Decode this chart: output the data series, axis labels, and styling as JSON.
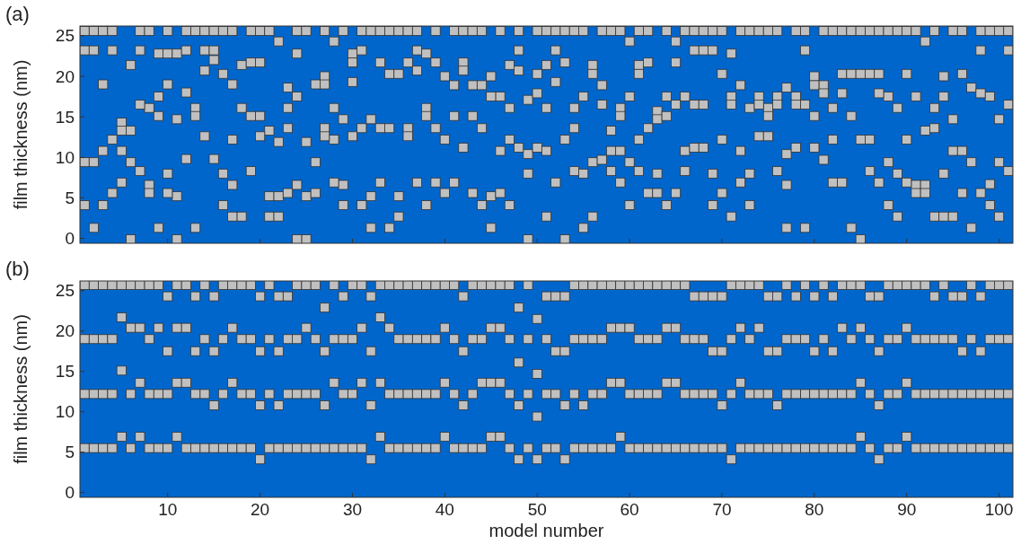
{
  "chart_data": [
    {
      "type": "scatter",
      "title": "(a)",
      "ylabel": "film thickness (nm)",
      "xlim": [
        0.5,
        101.5
      ],
      "xticks": [
        10,
        20,
        30,
        40,
        50,
        60,
        70,
        80,
        90,
        100
      ],
      "ylim": [
        -0.6,
        26.2
      ],
      "yticks": [
        0,
        5,
        10,
        15,
        20,
        25
      ],
      "tick_labels": "y",
      "marker": "square",
      "x": [
        1,
        2,
        3,
        4,
        5,
        6,
        7,
        8,
        9,
        10,
        11,
        12,
        13,
        14,
        15,
        16,
        17,
        18,
        19,
        20,
        21,
        22,
        23,
        24,
        25,
        26,
        27,
        28,
        29,
        30,
        31,
        32,
        33,
        34,
        35,
        36,
        37,
        38,
        39,
        40,
        41,
        42,
        43,
        44,
        45,
        46,
        47,
        48,
        49,
        50,
        51,
        52,
        53,
        54,
        55,
        56,
        57,
        58,
        59,
        60,
        61,
        62,
        63,
        64,
        65,
        66,
        67,
        68,
        69,
        70,
        71,
        72,
        73,
        74,
        75,
        76,
        77,
        78,
        79,
        80,
        81,
        82,
        83,
        84,
        85,
        86,
        87,
        88,
        89,
        90,
        91,
        92,
        93,
        94,
        95,
        96,
        97,
        98,
        99,
        100,
        101
      ],
      "series": [
        {
          "color": "#c0c0c0",
          "values": [
            25.6,
            25.6,
            25.6,
            25.6,
            null,
            null,
            25.6,
            25.6,
            null,
            25.6,
            null,
            25.6,
            25.6,
            25.6,
            25.6,
            25.6,
            25.6,
            null,
            25.6,
            25.6,
            25.6,
            null,
            null,
            25.6,
            25.6,
            null,
            25.6,
            null,
            25.6,
            null,
            25.6,
            25.6,
            25.6,
            25.6,
            25.6,
            25.6,
            25.6,
            null,
            25.6,
            null,
            25.6,
            25.6,
            25.6,
            25.6,
            null,
            25.6,
            null,
            25.6,
            null,
            25.6,
            25.6,
            25.6,
            25.6,
            25.6,
            25.6,
            null,
            25.6,
            25.6,
            25.6,
            null,
            25.6,
            25.6,
            null,
            25.6,
            null,
            25.6,
            25.6,
            25.6,
            25.6,
            25.6,
            null,
            25.6,
            25.6,
            25.6,
            25.6,
            25.6,
            null,
            25.6,
            25.6,
            null,
            25.6,
            25.6,
            25.6,
            25.6,
            25.6,
            25.6,
            25.6,
            25.6,
            25.6,
            25.6,
            25.6,
            null,
            25.6,
            null,
            25.6,
            25.6,
            null,
            25.6,
            25.6,
            25.6,
            25.6
          ]
        },
        {
          "color": "#c0c0c0",
          "values": [
            23.2,
            23.2,
            19.0,
            23.2,
            14.3,
            21.4,
            23.2,
            16.1,
            22.8,
            22.8,
            22.8,
            23.2,
            16.1,
            23.2,
            23.2,
            20.3,
            19.0,
            21.4,
            21.7,
            21.7,
            13.3,
            24.3,
            18.6,
            22.8,
            11.9,
            19.0,
            20.0,
            24.3,
            14.7,
            22.8,
            23.2,
            14.7,
            21.7,
            20.3,
            20.3,
            21.7,
            23.2,
            22.8,
            21.7,
            20.0,
            18.9,
            21.7,
            18.9,
            18.9,
            20.0,
            17.5,
            21.4,
            23.2,
            17.1,
            20.3,
            21.4,
            23.2,
            21.7,
            16.1,
            17.5,
            21.4,
            18.9,
            13.3,
            16.1,
            24.3,
            21.4,
            21.7,
            15.7,
            17.5,
            24.3,
            17.5,
            23.2,
            23.2,
            23.2,
            20.3,
            22.8,
            18.9,
            16.1,
            17.5,
            16.1,
            17.5,
            18.6,
            17.5,
            23.2,
            20.0,
            18.9,
            16.1,
            20.3,
            20.3,
            20.3,
            20.3,
            20.3,
            17.5,
            16.1,
            20.3,
            17.5,
            24.3,
            16.1,
            20.0,
            14.7,
            20.3,
            18.6,
            23.2,
            17.5,
            14.7,
            23.2
          ]
        },
        {
          "color": "#c0c0c0",
          "values": [
            9.4,
            9.4,
            10.8,
            12.2,
            13.3,
            13.3,
            16.5,
            6.6,
            17.5,
            19.0,
            14.7,
            18.0,
            15.1,
            20.7,
            22.0,
            8.0,
            12.2,
            16.1,
            15.1,
            15.1,
            5.2,
            11.9,
            16.1,
            17.5,
            5.2,
            9.4,
            19.0,
            16.1,
            6.6,
            21.7,
            13.6,
            5.2,
            13.6,
            13.6,
            5.2,
            13.6,
            20.7,
            16.1,
            13.6,
            12.2,
            15.1,
            20.7,
            15.1,
            13.6,
            17.5,
            10.8,
            16.1,
            20.7,
            10.4,
            17.9,
            16.1,
            19.3,
            12.2,
            13.6,
            8.0,
            20.3,
            16.5,
            10.8,
            15.1,
            17.5,
            20.3,
            13.6,
            14.7,
            15.1,
            21.7,
            10.8,
            16.5,
            16.5,
            8.0,
            12.2,
            17.5,
            10.8,
            8.0,
            16.5,
            15.1,
            16.5,
            10.4,
            16.5,
            16.5,
            18.9,
            17.9,
            12.2,
            17.9,
            15.1,
            12.2,
            12.2,
            17.9,
            9.4,
            8.0,
            12.2,
            6.6,
            13.3,
            13.6,
            17.5,
            10.8,
            10.8,
            9.4,
            17.9,
            6.7,
            9.4,
            16.5
          ]
        },
        {
          "color": "#c0c0c0",
          "values": [
            4.1,
            1.3,
            4.1,
            5.6,
            10.8,
            9.4,
            8.3,
            5.6,
            15.1,
            8.0,
            5.2,
            9.8,
            1.3,
            12.6,
            9.8,
            4.1,
            6.6,
            2.7,
            8.3,
            12.6,
            2.7,
            5.2,
            13.6,
            6.6,
            -0.1,
            5.6,
            13.6,
            12.2,
            4.1,
            19.3,
            4.1,
            1.3,
            6.9,
            1.3,
            2.7,
            12.6,
            6.9,
            15.1,
            6.9,
            5.6,
            6.9,
            11.2,
            5.6,
            4.1,
            5.2,
            5.6,
            12.2,
            11.2,
            8.0,
            11.2,
            10.8,
            6.9,
            -0.1,
            8.3,
            1.3,
            9.4,
            9.7,
            8.3,
            10.8,
            9.4,
            12.2,
            5.6,
            8.0,
            4.1,
            16.5,
            8.3,
            11.2,
            11.2,
            4.1,
            5.6,
            16.5,
            6.9,
            4.1,
            12.6,
            12.6,
            8.3,
            6.6,
            11.2,
            1.3,
            15.1,
            9.7,
            6.9,
            6.9,
            1.3,
            -0.1,
            8.3,
            6.9,
            4.1,
            2.7,
            6.9,
            5.6,
            6.6,
            2.7,
            8.0,
            2.7,
            5.6,
            1.3,
            5.6,
            4.1,
            2.7,
            8.3
          ]
        },
        {
          "color": "#c0c0c0",
          "x": [
            5,
            6,
            9,
            10,
            11,
            17,
            22,
            23,
            24,
            27,
            28,
            30,
            38,
            45,
            47,
            49,
            51,
            56,
            59,
            60,
            61,
            63,
            65,
            71,
            77,
            80,
            92,
            94
          ],
          "values": [
            6.9,
            -0.1,
            1.3,
            5.6,
            -0.1,
            2.7,
            2.7,
            5.6,
            -0.1,
            12.6,
            6.9,
            12.6,
            4.1,
            1.3,
            4.1,
            -0.1,
            2.7,
            2.7,
            6.9,
            4.1,
            8.3,
            5.6,
            5.6,
            2.7,
            1.3,
            11.2,
            5.6,
            2.7
          ]
        }
      ]
    },
    {
      "type": "scatter",
      "title": "(b)",
      "xlabel": "model number",
      "ylabel": "film thickness (nm)",
      "xlim": [
        0.5,
        101.5
      ],
      "xticks": [
        10,
        20,
        30,
        40,
        50,
        60,
        70,
        80,
        90,
        100
      ],
      "ylim": [
        -0.6,
        26.2
      ],
      "yticks": [
        0,
        5,
        10,
        15,
        20,
        25
      ],
      "marker": "square",
      "x": [
        1,
        2,
        3,
        4,
        5,
        6,
        7,
        8,
        9,
        10,
        11,
        12,
        13,
        14,
        15,
        16,
        17,
        18,
        19,
        20,
        21,
        22,
        23,
        24,
        25,
        26,
        27,
        28,
        29,
        30,
        31,
        32,
        33,
        34,
        35,
        36,
        37,
        38,
        39,
        40,
        41,
        42,
        43,
        44,
        45,
        46,
        47,
        48,
        49,
        50,
        51,
        52,
        53,
        54,
        55,
        56,
        57,
        58,
        59,
        60,
        61,
        62,
        63,
        64,
        65,
        66,
        67,
        68,
        69,
        70,
        71,
        72,
        73,
        74,
        75,
        76,
        77,
        78,
        79,
        80,
        81,
        82,
        83,
        84,
        85,
        86,
        87,
        88,
        89,
        90,
        91,
        92,
        93,
        94,
        95,
        96,
        97,
        98,
        99,
        100,
        101
      ],
      "series": [
        {
          "color": "#c0c0c0",
          "values": [
            25.7,
            25.7,
            25.7,
            25.7,
            25.7,
            25.7,
            25.7,
            25.7,
            25.7,
            null,
            25.7,
            25.7,
            null,
            25.7,
            null,
            25.7,
            25.7,
            25.7,
            25.7,
            null,
            25.7,
            null,
            null,
            25.7,
            25.7,
            25.7,
            null,
            25.7,
            null,
            25.7,
            25.7,
            null,
            25.7,
            25.7,
            25.7,
            25.7,
            25.7,
            25.7,
            25.7,
            25.7,
            25.7,
            null,
            25.7,
            25.7,
            25.7,
            25.7,
            25.7,
            null,
            25.7,
            null,
            null,
            null,
            null,
            25.7,
            25.7,
            25.7,
            25.7,
            25.7,
            25.7,
            25.7,
            25.7,
            25.7,
            25.7,
            25.7,
            25.7,
            25.7,
            null,
            null,
            null,
            null,
            25.7,
            25.7,
            25.7,
            25.7,
            null,
            null,
            25.7,
            null,
            25.7,
            null,
            25.7,
            null,
            25.7,
            25.7,
            25.7,
            null,
            null,
            25.7,
            25.7,
            25.7,
            25.7,
            25.7,
            null,
            25.7,
            null,
            null,
            25.7,
            null,
            25.7,
            25.7,
            25.7
          ]
        },
        {
          "color": "#c0c0c0",
          "values": [
            19.0,
            19.0,
            19.0,
            19.0,
            21.7,
            20.4,
            20.4,
            19.0,
            20.4,
            24.3,
            20.4,
            20.4,
            24.3,
            19.0,
            24.3,
            19.0,
            20.4,
            19.0,
            19.0,
            24.3,
            19.0,
            24.3,
            24.3,
            19.0,
            20.4,
            19.0,
            22.9,
            19.0,
            24.3,
            19.0,
            20.4,
            24.3,
            21.7,
            20.4,
            19.0,
            19.0,
            19.0,
            19.0,
            19.0,
            20.4,
            19.0,
            24.3,
            19.0,
            19.0,
            20.4,
            20.4,
            19.0,
            22.9,
            19.0,
            21.5,
            24.3,
            24.3,
            24.3,
            19.0,
            19.0,
            19.0,
            19.0,
            20.4,
            20.4,
            20.4,
            19.0,
            19.0,
            19.0,
            20.4,
            20.4,
            19.0,
            24.3,
            24.3,
            24.3,
            24.3,
            19.0,
            20.4,
            19.0,
            20.4,
            24.3,
            24.3,
            19.0,
            24.3,
            19.0,
            24.3,
            19.0,
            24.3,
            20.4,
            19.0,
            20.4,
            24.3,
            24.3,
            19.0,
            19.0,
            20.4,
            19.0,
            19.0,
            24.3,
            19.0,
            24.3,
            24.3,
            19.0,
            24.3,
            19.0,
            19.0,
            19.0
          ]
        },
        {
          "color": "#c0c0c0",
          "values": [
            12.2,
            12.2,
            12.2,
            12.2,
            15.1,
            12.2,
            13.6,
            12.2,
            12.2,
            17.5,
            13.6,
            13.6,
            17.5,
            12.2,
            17.5,
            12.2,
            13.6,
            12.2,
            12.2,
            17.5,
            12.2,
            17.5,
            19.0,
            12.2,
            12.2,
            12.2,
            17.5,
            13.6,
            19.0,
            12.2,
            13.6,
            17.5,
            13.6,
            12.2,
            12.2,
            12.2,
            12.2,
            12.2,
            12.2,
            13.6,
            12.2,
            17.5,
            12.2,
            13.6,
            13.6,
            13.6,
            12.2,
            16.1,
            12.2,
            14.7,
            19.0,
            17.5,
            17.5,
            12.2,
            10.8,
            12.2,
            12.2,
            13.6,
            13.6,
            12.2,
            12.2,
            12.2,
            12.2,
            13.6,
            13.6,
            12.2,
            19.0,
            19.0,
            17.5,
            17.5,
            12.2,
            13.6,
            12.2,
            12.2,
            17.5,
            17.5,
            12.2,
            19.0,
            12.2,
            17.5,
            12.2,
            17.5,
            12.2,
            12.2,
            13.6,
            19.0,
            17.5,
            12.2,
            12.2,
            13.6,
            12.2,
            12.2,
            19.0,
            12.2,
            19.0,
            17.5,
            12.2,
            17.5,
            12.2,
            12.2,
            12.2
          ]
        },
        {
          "color": "#c0c0c0",
          "values": [
            5.5,
            5.5,
            5.5,
            5.5,
            6.9,
            5.5,
            6.9,
            5.5,
            5.5,
            12.2,
            6.9,
            5.5,
            12.2,
            5.5,
            10.8,
            5.5,
            5.5,
            5.5,
            5.5,
            10.8,
            5.5,
            10.8,
            12.2,
            5.5,
            5.5,
            5.5,
            10.8,
            5.5,
            12.2,
            5.5,
            5.5,
            10.8,
            6.9,
            5.5,
            5.5,
            5.5,
            5.5,
            5.5,
            5.5,
            6.9,
            5.5,
            10.8,
            5.5,
            5.5,
            6.9,
            6.9,
            5.5,
            10.8,
            5.5,
            9.4,
            12.2,
            12.2,
            10.8,
            5.5,
            5.5,
            5.5,
            5.5,
            5.5,
            6.9,
            5.5,
            5.5,
            5.5,
            5.5,
            5.5,
            5.5,
            5.5,
            12.2,
            12.2,
            12.2,
            10.8,
            4.1,
            5.5,
            5.5,
            5.5,
            12.2,
            10.8,
            5.5,
            12.2,
            5.5,
            12.2,
            5.5,
            12.2,
            5.5,
            5.5,
            6.9,
            12.2,
            10.8,
            5.5,
            5.5,
            6.9,
            5.5,
            5.5,
            12.2,
            5.5,
            12.2,
            12.2,
            5.5,
            12.2,
            5.5,
            5.5,
            5.5
          ]
        },
        {
          "color": "#c0c0c0",
          "x": [
            10,
            13,
            15,
            20,
            22,
            23,
            27,
            29,
            32,
            42,
            48,
            50,
            51,
            52,
            53,
            67,
            68,
            69,
            70,
            75,
            76,
            78,
            80,
            82,
            86,
            87,
            93,
            95,
            96,
            98
          ],
          "values": [
            5.5,
            5.5,
            5.5,
            4.1,
            5.5,
            5.5,
            5.5,
            5.5,
            4.1,
            5.5,
            4.1,
            4.1,
            5.5,
            5.5,
            4.1,
            5.5,
            5.5,
            5.5,
            5.5,
            5.5,
            5.5,
            5.5,
            5.5,
            5.5,
            5.5,
            4.1,
            5.5,
            5.5,
            5.5,
            5.5
          ]
        }
      ]
    }
  ]
}
